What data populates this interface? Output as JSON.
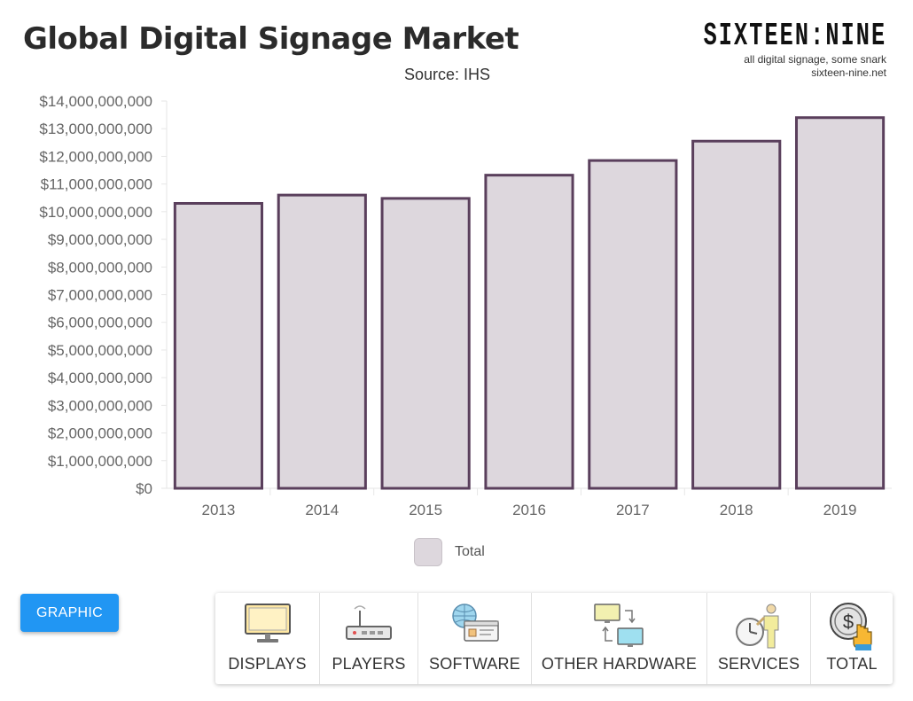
{
  "header": {
    "title": "Global Digital Signage Market",
    "subtitle": "Source: IHS",
    "brand": "SIXTEEN:NINE",
    "brand_tagline": "all digital signage, some snark",
    "brand_url": "sixteen-nine.net"
  },
  "colors": {
    "bar_fill": "#ddd7dd",
    "bar_stroke": "#5a3f5c",
    "button_blue": "#2196f3"
  },
  "chart_data": {
    "type": "bar",
    "title": "Global Digital Signage Market",
    "subtitle": "Source: IHS",
    "categories": [
      "2013",
      "2014",
      "2015",
      "2016",
      "2017",
      "2018",
      "2019"
    ],
    "series": [
      {
        "name": "Total",
        "values": [
          10300000000,
          10600000000,
          10480000000,
          11320000000,
          11850000000,
          12550000000,
          13400000000
        ]
      }
    ],
    "ylim": [
      0,
      14000000000
    ],
    "yticks": [
      "$0",
      "$1,000,000,000",
      "$2,000,000,000",
      "$3,000,000,000",
      "$4,000,000,000",
      "$5,000,000,000",
      "$6,000,000,000",
      "$7,000,000,000",
      "$8,000,000,000",
      "$9,000,000,000",
      "$10,000,000,000",
      "$11,000,000,000",
      "$12,000,000,000",
      "$13,000,000,000",
      "$14,000,000,000"
    ],
    "xlabel": "",
    "ylabel": "",
    "legend": "bottom",
    "grid": false
  },
  "legend": {
    "label": "Total"
  },
  "buttons": {
    "graphic": "GRAPHIC"
  },
  "tabs": [
    {
      "label": "DISPLAYS",
      "icon": "monitor-icon"
    },
    {
      "label": "PLAYERS",
      "icon": "router-icon"
    },
    {
      "label": "SOFTWARE",
      "icon": "globe-window-icon"
    },
    {
      "label": "OTHER HARDWARE",
      "icon": "devices-sync-icon"
    },
    {
      "label": "SERVICES",
      "icon": "person-clock-icon"
    },
    {
      "label": "TOTAL",
      "icon": "dollar-coin-hand-icon"
    }
  ]
}
